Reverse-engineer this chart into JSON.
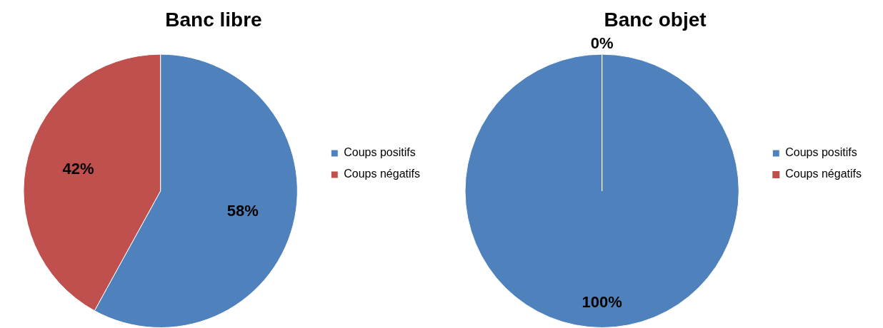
{
  "chart_data": [
    {
      "type": "pie",
      "title": "Banc libre",
      "categories": [
        "Coups positifs",
        "Coups négatifs"
      ],
      "values": [
        58,
        42
      ],
      "value_labels": [
        "58%",
        "42%"
      ],
      "colors": [
        "#4f81bd",
        "#c0504d"
      ],
      "legend": "right"
    },
    {
      "type": "pie",
      "title": "Banc objet",
      "categories": [
        "Coups positifs",
        "Coups négatifs"
      ],
      "values": [
        100,
        0
      ],
      "value_labels": [
        "100%",
        "0%"
      ],
      "colors": [
        "#4f81bd",
        "#c0504d"
      ],
      "legend": "right"
    }
  ]
}
